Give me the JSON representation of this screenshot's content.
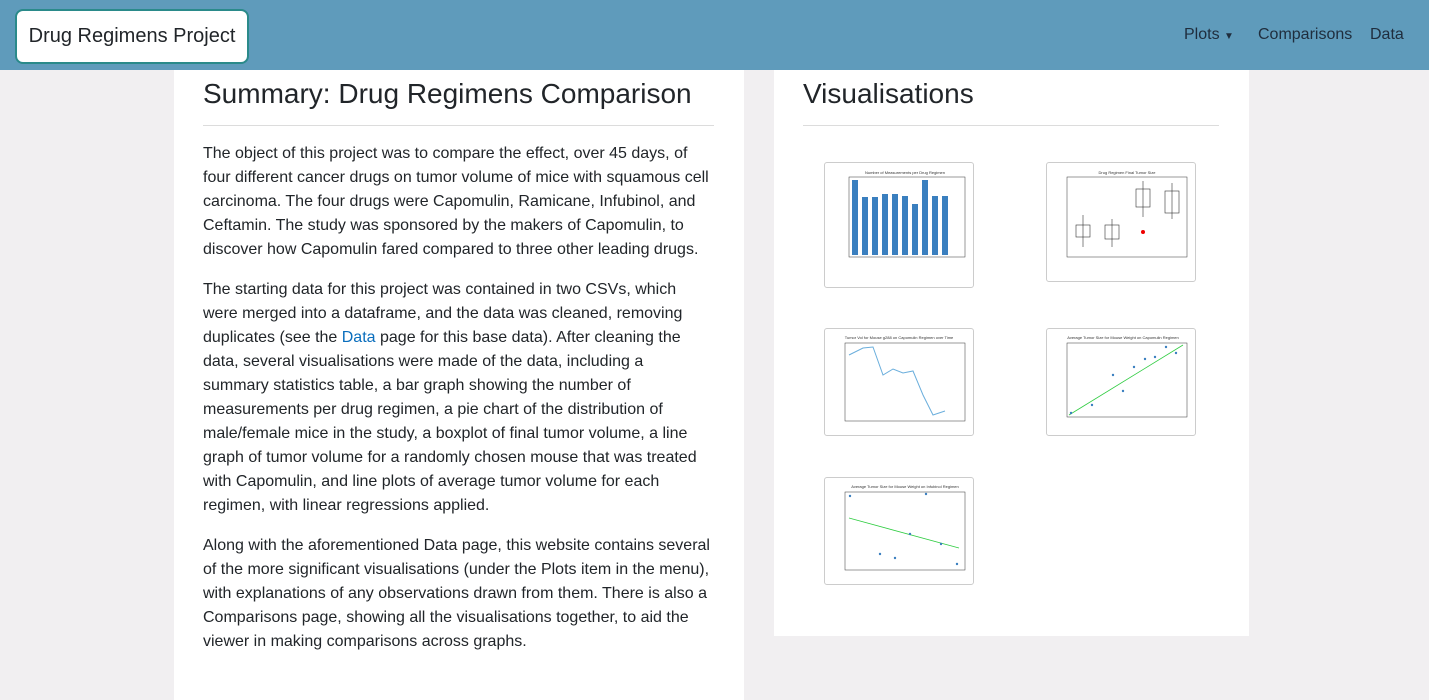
{
  "navbar": {
    "brand": "Drug Regimens Project",
    "links": [
      "Plots",
      "Comparisons",
      "Data"
    ]
  },
  "summary": {
    "title": "Summary: Drug Regimens Comparison",
    "paragraphs": [
      "The object of this project was to compare the effect, over 45 days, of four different cancer drugs on tumor volume of mice with squamous cell carcinoma. The four drugs were Capomulin, Ramicane, Infubinol, and Ceftamin. The study was sponsored by the makers of Capomulin, to discover how Capomulin fared compared to three other leading drugs.",
      {
        "before": "The starting data for this project was contained in two CSVs, which were merged into a dataframe, and the data was cleaned, removing duplicates (see the ",
        "link": "Data",
        "after": " page for this base data). After cleaning the data, several visualisations were made of the data, including a summary statistics table, a bar graph showing the number of measurements per drug regimen, a pie chart of the distribution of male/female mice in the study, a boxplot of final tumor volume, a line graph of tumor volume for a randomly chosen mouse that was treated with Capomulin, and line plots of average tumor volume for each regimen, with linear regressions applied."
      },
      "Along with the aforementioned Data page, this website contains several of the more significant visualisations (under the Plots item in the menu), with explanations of any observations drawn from them. There is also a Comparisons page, showing all the visualisations together, to aid the viewer in making comparisons across graphs."
    ]
  },
  "visualisations": {
    "title": "Visualisations",
    "thumbnails": [
      "Number of Measurements per Drug Regimen",
      "Drug Regimen Final Tumor Size",
      "Tumor Vol for Mouse g288 on Capomulin Regimen over Time",
      "Average Tumor Size for Mouse Weight on Capomulin Regimen",
      "Average Tumor Size for Mouse Weight on Infubinol Regimen"
    ]
  }
}
